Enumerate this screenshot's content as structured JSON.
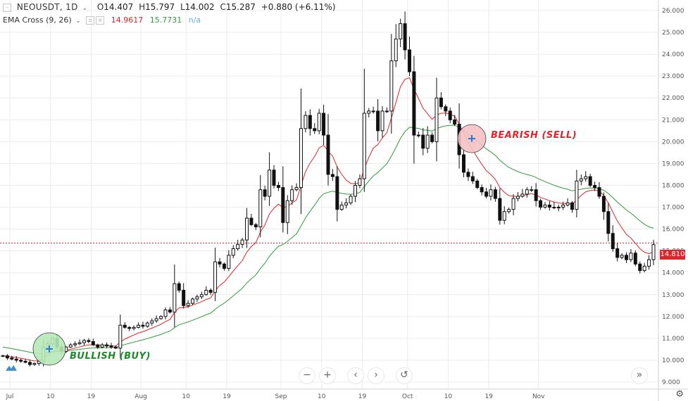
{
  "header": {
    "symbol": "NEOUSDT, 1D",
    "o_label": "O",
    "o_value": "14.407",
    "h_label": "H",
    "h_value": "15.797",
    "l_label": "L",
    "l_value": "14.002",
    "c_label": "C",
    "c_value": "15.287",
    "change": "+0.880 (+6.11%)"
  },
  "indicator": {
    "name": "EMA Cross (9, 26)",
    "fast_value": "14.9617",
    "slow_value": "15.7731",
    "extra": "n/a"
  },
  "annotations": {
    "bullish": "BULLISH (BUY)",
    "bearish": "BEARISH (SELL)"
  },
  "price_tag": "14.810",
  "nav": {
    "zoom_out": "−",
    "zoom_in": "+",
    "prev": "‹",
    "next": "›",
    "reset": "↺",
    "end": "»"
  },
  "colors": {
    "fast_ema": "#e0252a",
    "slow_ema": "#2e9c3a",
    "bullish_fill": "#b6e8b8",
    "bearish_fill": "#f4c2c4",
    "price_line": "#e0252a",
    "grid": "#ececec"
  },
  "chart_data": {
    "type": "candlestick",
    "title": "NEOUSDT, 1D",
    "x_ticks": [
      "Jul",
      "10",
      "19",
      "Aug",
      "10",
      "19",
      "Sep",
      "10",
      "19",
      "Oct",
      "10",
      "19",
      "Nov"
    ],
    "y_ticks": [
      "9.000",
      "10.000",
      "11.000",
      "12.000",
      "13.000",
      "14.000",
      "15.000",
      "16.000",
      "17.000",
      "18.000",
      "19.000",
      "20.000",
      "21.000",
      "22.000",
      "23.000",
      "24.000",
      "25.000",
      "26.000"
    ],
    "ylim": [
      8.5,
      26.3
    ],
    "grid": true,
    "last_price": 14.81,
    "series": [
      {
        "name": "EMA 9",
        "color": "#e0252a"
      },
      {
        "name": "EMA 26",
        "color": "#2e9c3a"
      }
    ],
    "close": [
      10.2,
      10.1,
      10.05,
      10.0,
      9.95,
      9.9,
      9.8,
      9.85,
      9.95,
      10.6,
      10.75,
      11.0,
      10.6,
      10.4,
      10.6,
      10.7,
      10.75,
      10.8,
      10.9,
      10.85,
      10.7,
      10.6,
      10.7,
      10.65,
      10.6,
      10.55,
      11.6,
      11.5,
      11.45,
      11.5,
      11.6,
      11.55,
      11.7,
      11.8,
      11.9,
      12.0,
      12.3,
      12.2,
      13.5,
      13.2,
      12.5,
      12.6,
      12.8,
      12.9,
      13.0,
      13.2,
      13.1,
      14.5,
      14.4,
      14.2,
      14.8,
      15.1,
      15.3,
      15.5,
      16.5,
      16.2,
      16.1,
      17.8,
      17.5,
      18.7,
      18.0,
      17.9,
      16.3,
      17.3,
      17.8,
      17.9,
      20.6,
      21.2,
      20.6,
      20.5,
      21.3,
      20.3,
      18.5,
      18.4,
      16.9,
      17.1,
      17.2,
      17.5,
      18.0,
      18.3,
      21.3,
      21.4,
      21.4,
      20.5,
      21.4,
      21.4,
      23.7,
      24.7,
      25.4,
      24.2,
      23.2,
      20.3,
      20.3,
      19.7,
      20.3,
      20.0,
      22.0,
      21.6,
      21.4,
      21.0,
      20.8,
      19.4,
      18.6,
      18.4,
      18.2,
      17.9,
      17.7,
      17.5,
      17.8,
      17.4,
      16.4,
      16.8,
      16.9,
      17.4,
      17.5,
      17.6,
      17.8,
      17.8,
      17.3,
      17.0,
      17.1,
      17.0,
      17.0,
      17.0,
      17.1,
      17.2,
      16.9,
      18.2,
      18.3,
      18.4,
      18.0,
      17.9,
      17.5,
      16.8,
      15.8,
      15.1,
      14.7,
      14.8,
      14.6,
      14.9,
      14.4,
      14.1,
      14.3,
      14.6,
      15.287
    ]
  }
}
